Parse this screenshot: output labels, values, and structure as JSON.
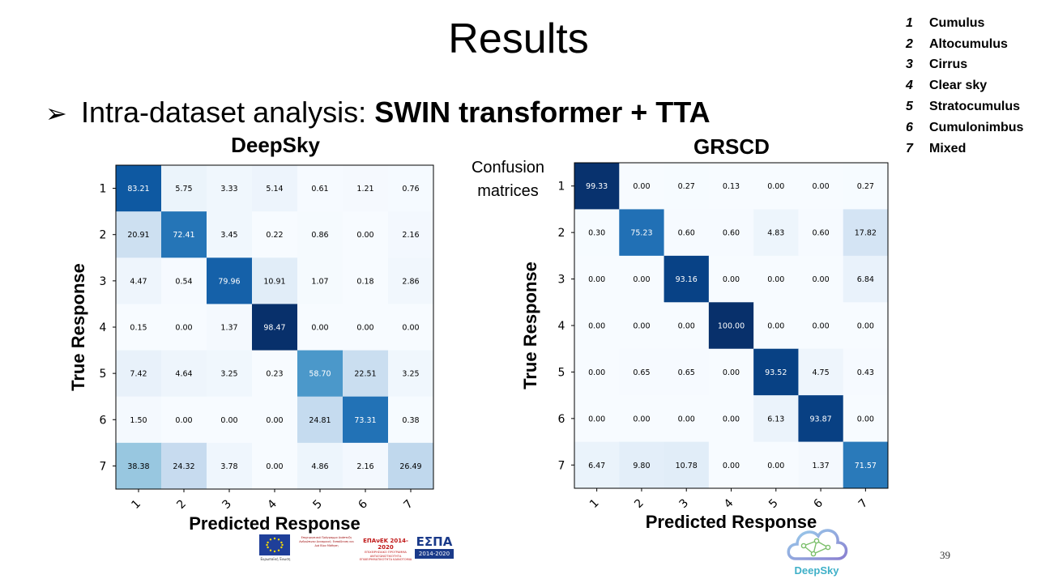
{
  "slide": {
    "title": "Results",
    "bullet_prefix": "Intra-dataset analysis: ",
    "bullet_bold": "SWIN transformer + TTA",
    "side_label_line1": "Confusion",
    "side_label_line2": "matrices",
    "page_number": "39",
    "footer": {
      "eu_text": "Ευρωπαϊκή Ένωση",
      "gr_text": "Επιχειρησιακό Πρόγραμμα Ανάπτυξη Ανθρώπινου Δυναμικού, Εκπαίδευση και Διά Βίου Μάθηση",
      "epan_line1": "ΕΠΑνΕΚ 2014-2020",
      "epan_line2": "ΕΠΙΧΕΙΡΗΣΙΑΚΟ ΠΡΟΓΡΑΜΜΑ ΑΝΤΑΓΩΝΙΣΤΙΚΟΤΗΤΑ ΕΠΙΧΕΙΡΗΜΑΤΙΚΟΤΗΤΑ ΚΑΙΝΟΤΟΜΙΑ",
      "espa_line1": "ΕΣΠΑ",
      "espa_line2": "2014-2020",
      "deepsky_logo_text": "DeepSky"
    }
  },
  "legend": [
    {
      "num": "1",
      "name": "Cumulus"
    },
    {
      "num": "2",
      "name": "Altocumulus"
    },
    {
      "num": "3",
      "name": "Cirrus"
    },
    {
      "num": "4",
      "name": "Clear sky"
    },
    {
      "num": "5",
      "name": "Stratocumulus"
    },
    {
      "num": "6",
      "name": "Cumulonimbus"
    },
    {
      "num": "7",
      "name": "Mixed"
    }
  ],
  "colors": {
    "cmap_low": "#f7fbff",
    "cmap_high": "#08306b"
  },
  "chart_data": [
    {
      "type": "heatmap",
      "title": "DeepSky",
      "xlabel": "Predicted Response",
      "ylabel": "True Response",
      "xticklabels": [
        "1",
        "2",
        "3",
        "4",
        "5",
        "6",
        "7"
      ],
      "yticklabels": [
        "1",
        "2",
        "3",
        "4",
        "5",
        "6",
        "7"
      ],
      "values": [
        [
          83.21,
          5.75,
          3.33,
          5.14,
          0.61,
          1.21,
          0.76
        ],
        [
          20.91,
          72.41,
          3.45,
          0.22,
          0.86,
          0.0,
          2.16
        ],
        [
          4.47,
          0.54,
          79.96,
          10.91,
          1.07,
          0.18,
          2.86
        ],
        [
          0.15,
          0.0,
          1.37,
          98.47,
          0.0,
          0.0,
          0.0
        ],
        [
          7.42,
          4.64,
          3.25,
          0.23,
          58.7,
          22.51,
          3.25
        ],
        [
          1.5,
          0.0,
          0.0,
          0.0,
          24.81,
          73.31,
          0.38
        ],
        [
          38.38,
          24.32,
          3.78,
          0.0,
          4.86,
          2.16,
          26.49
        ]
      ]
    },
    {
      "type": "heatmap",
      "title": "GRSCD",
      "xlabel": "Predicted Response",
      "ylabel": "True Response",
      "xticklabels": [
        "1",
        "2",
        "3",
        "4",
        "5",
        "6",
        "7"
      ],
      "yticklabels": [
        "1",
        "2",
        "3",
        "4",
        "5",
        "6",
        "7"
      ],
      "values": [
        [
          99.33,
          0.0,
          0.27,
          0.13,
          0.0,
          0.0,
          0.27
        ],
        [
          0.3,
          75.23,
          0.6,
          0.6,
          4.83,
          0.6,
          17.82
        ],
        [
          0.0,
          0.0,
          93.16,
          0.0,
          0.0,
          0.0,
          6.84
        ],
        [
          0.0,
          0.0,
          0.0,
          100.0,
          0.0,
          0.0,
          0.0
        ],
        [
          0.0,
          0.65,
          0.65,
          0.0,
          93.52,
          4.75,
          0.43
        ],
        [
          0.0,
          0.0,
          0.0,
          0.0,
          6.13,
          93.87,
          0.0
        ],
        [
          6.47,
          9.8,
          10.78,
          0.0,
          0.0,
          1.37,
          71.57
        ]
      ]
    }
  ]
}
